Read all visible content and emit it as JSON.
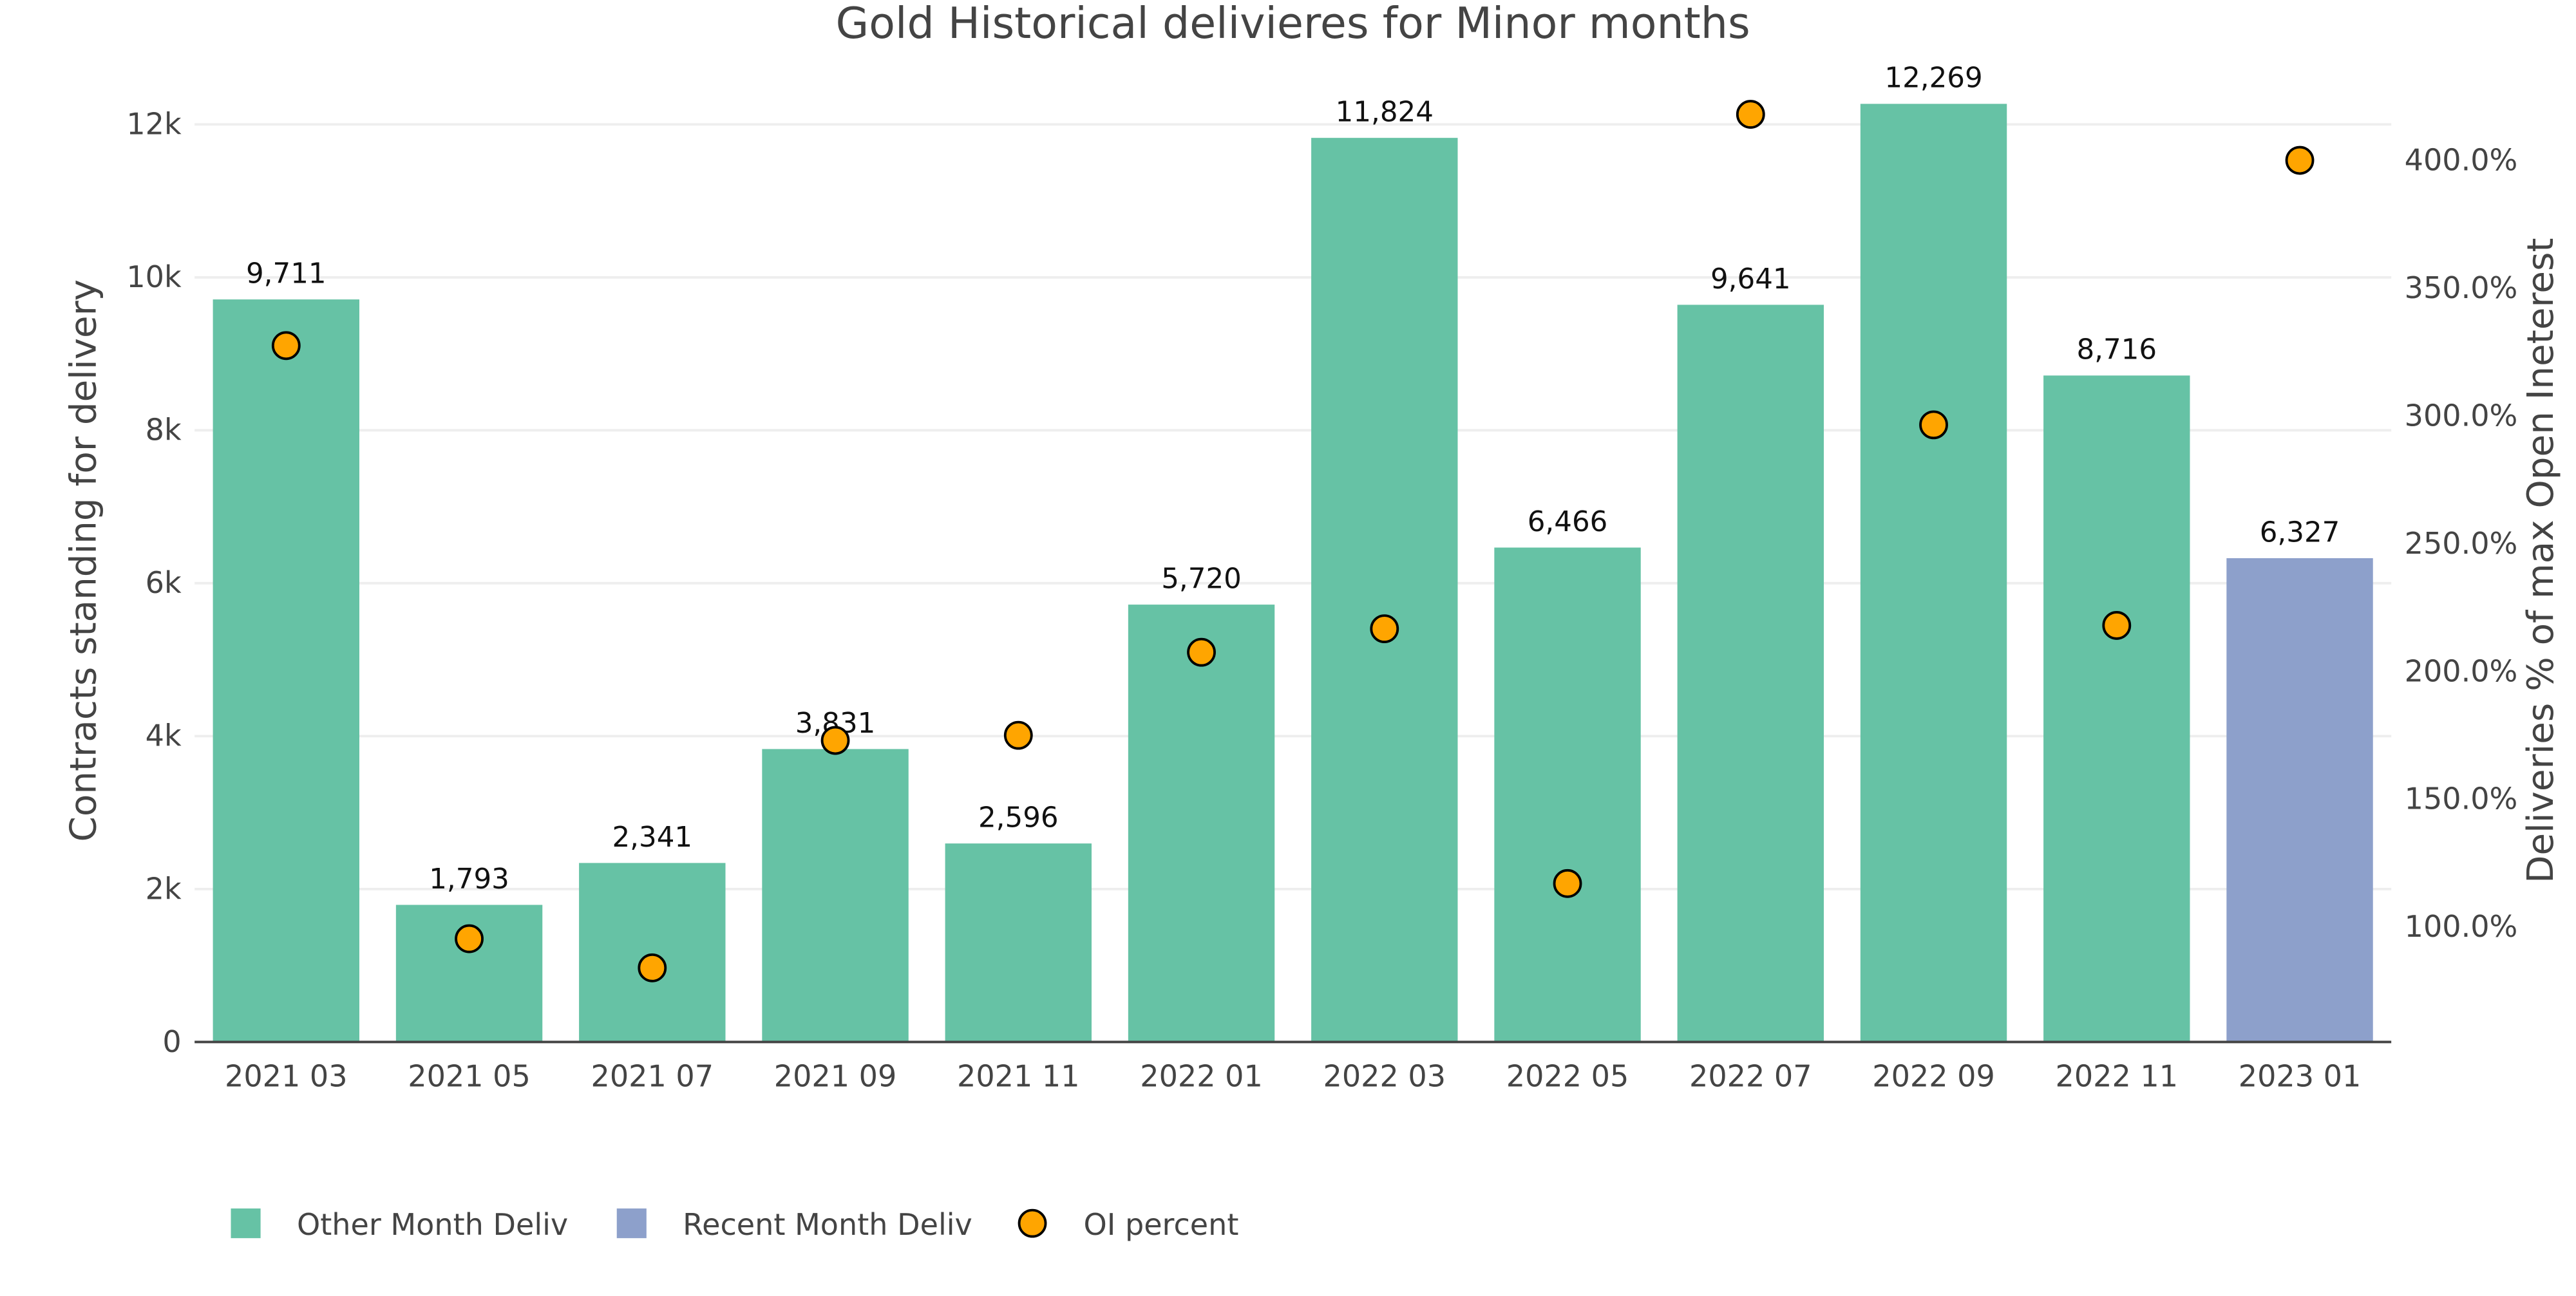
{
  "chart_data": {
    "type": "bar",
    "title": "Gold Historical delivieres for Minor months",
    "xlabel": "",
    "ylabel": "Contracts standing for delivery",
    "y2label": "Deliveries % of max Open Ineterest",
    "categories": [
      "2021 03",
      "2021 05",
      "2021 07",
      "2021 09",
      "2021 11",
      "2022 01",
      "2022 03",
      "2022 05",
      "2022 07",
      "2022 09",
      "2022 11",
      "2023 01"
    ],
    "series": [
      {
        "name": "Other Month Deliv",
        "type": "bar",
        "color": "#66c2a5",
        "values": [
          9711,
          1793,
          2341,
          3831,
          2596,
          5720,
          11824,
          6466,
          9641,
          12269,
          8716,
          null
        ]
      },
      {
        "name": "Recent Month Deliv",
        "type": "bar",
        "color": "#8da0cb",
        "values": [
          null,
          null,
          null,
          null,
          null,
          null,
          null,
          null,
          null,
          null,
          null,
          6327
        ]
      },
      {
        "name": "OI percent",
        "type": "scatter",
        "axis": "y2",
        "color": "#ffa500",
        "values": [
          327.5,
          95.4,
          84.0,
          173.0,
          175.0,
          207.5,
          216.7,
          117.0,
          418.0,
          296.5,
          218.0,
          400.0
        ]
      }
    ],
    "bar_labels": [
      "9,711",
      "1,793",
      "2,341",
      "3,831",
      "2,596",
      "5,720",
      "11,824",
      "6,466",
      "9,641",
      "12,269",
      "8,716",
      "6,327"
    ],
    "ylim": [
      0,
      12700
    ],
    "yticks": [
      0,
      2000,
      4000,
      6000,
      8000,
      10000,
      12000
    ],
    "ytick_labels": [
      "0",
      "2k",
      "4k",
      "6k",
      "8k",
      "10k",
      "12k"
    ],
    "y2lim": [
      55,
      435
    ],
    "y2ticks": [
      100,
      150,
      200,
      250,
      300,
      350,
      400
    ],
    "y2tick_labels": [
      "100.0%",
      "150.0%",
      "200.0%",
      "250.0%",
      "300.0%",
      "350.0%",
      "400.0%"
    ],
    "grid": true,
    "legend_position": "bottom-left"
  }
}
